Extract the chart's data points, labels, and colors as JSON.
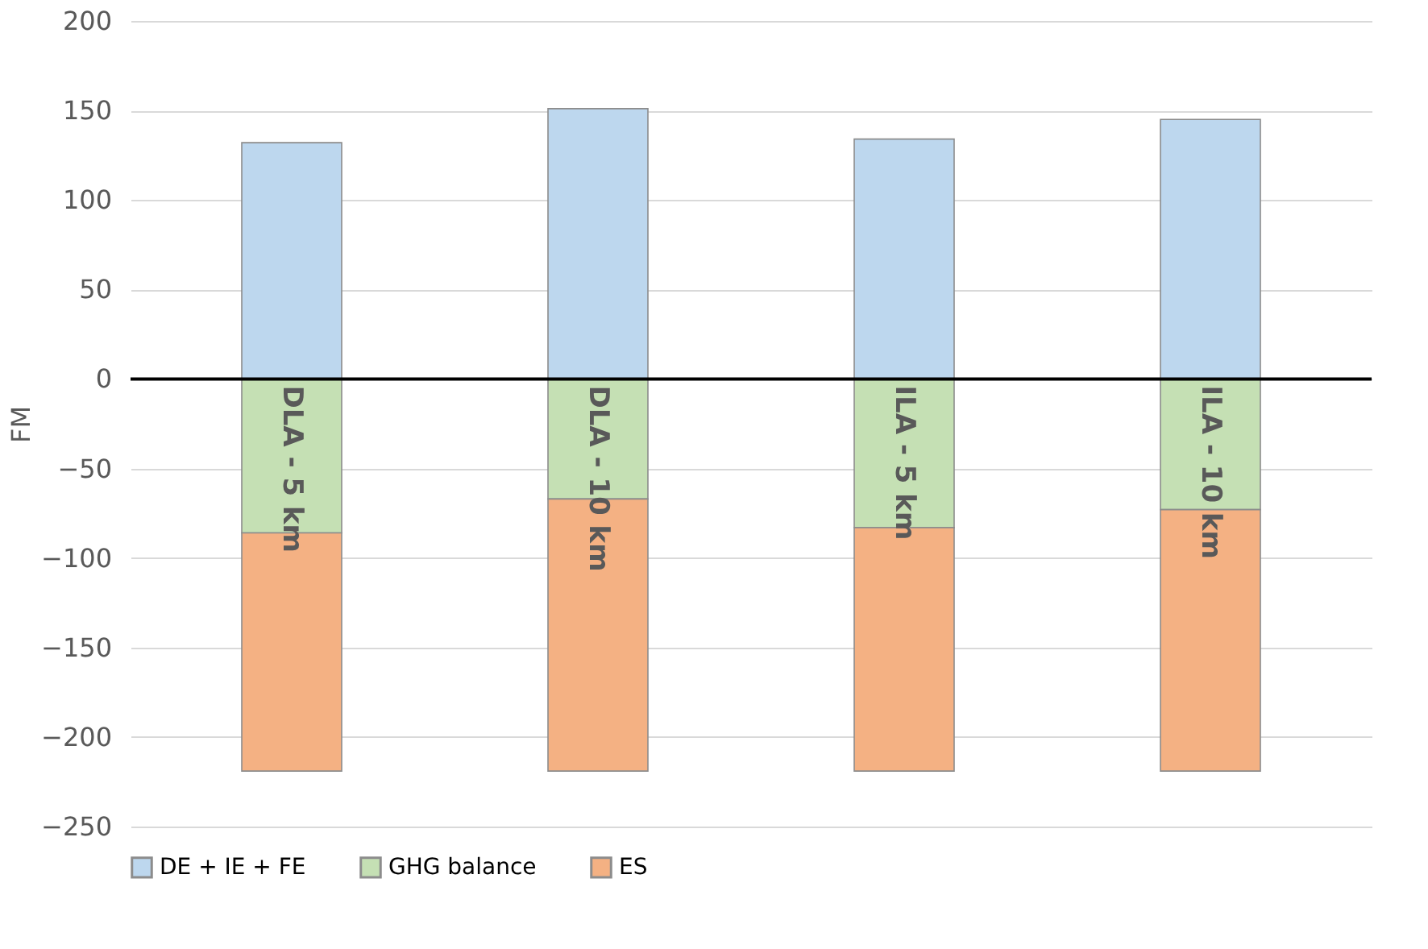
{
  "chart_data": {
    "type": "bar",
    "stacked": true,
    "ylabel": "FM",
    "categories": [
      "DLA - 5 km",
      "DLA - 10 km",
      "ILA - 5 km",
      "ILA - 10 km"
    ],
    "series": [
      {
        "name": "DE + IE + FE",
        "color": "#bdd7ee",
        "values": [
          132,
          151,
          134,
          145
        ]
      },
      {
        "name": "GHG balance",
        "color": "#c5e0b4",
        "values": [
          -86,
          -67,
          -83,
          -73
        ]
      },
      {
        "name": "ES",
        "color": "#f4b183",
        "values": [
          -133,
          -152,
          -136,
          -146
        ]
      }
    ],
    "ylim": [
      -250,
      200
    ],
    "yticks": [
      -250,
      -200,
      -150,
      -100,
      -50,
      0,
      50,
      100,
      150,
      200
    ],
    "grid": "y",
    "legend": "bottom"
  }
}
